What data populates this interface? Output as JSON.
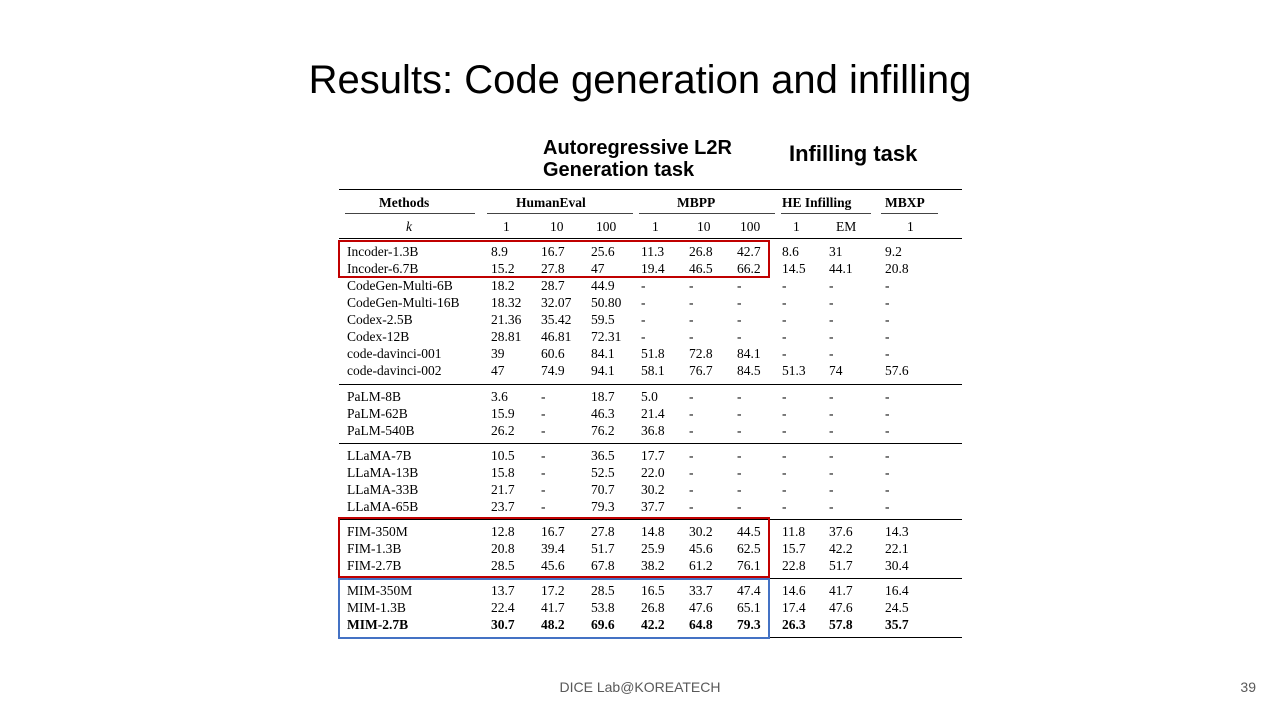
{
  "slide": {
    "title": "Results: Code generation and infilling",
    "annotation_autoregressive": [
      "Autoregressive L2R",
      "Generation task"
    ],
    "annotation_infilling": "Infilling task",
    "footer": "DICE Lab@KOREATECH",
    "page_number": "39"
  },
  "table": {
    "group_headers": [
      "Methods",
      "HumanEval",
      "MBPP",
      "HE Infilling",
      "MBXP"
    ],
    "k_label": "k",
    "k_values": [
      "1",
      "10",
      "100",
      "1",
      "10",
      "100",
      "1",
      "EM",
      "1"
    ],
    "rows": [
      [
        "Incoder-1.3B",
        "8.9",
        "16.7",
        "25.6",
        "11.3",
        "26.8",
        "42.7",
        "8.6",
        "31",
        "9.2"
      ],
      [
        "Incoder-6.7B",
        "15.2",
        "27.8",
        "47",
        "19.4",
        "46.5",
        "66.2",
        "14.5",
        "44.1",
        "20.8"
      ],
      [
        "CodeGen-Multi-6B",
        "18.2",
        "28.7",
        "44.9",
        "-",
        "-",
        "-",
        "-",
        "-",
        "-"
      ],
      [
        "CodeGen-Multi-16B",
        "18.32",
        "32.07",
        "50.80",
        "-",
        "-",
        "-",
        "-",
        "-",
        "-"
      ],
      [
        "Codex-2.5B",
        "21.36",
        "35.42",
        "59.5",
        "-",
        "-",
        "-",
        "-",
        "-",
        "-"
      ],
      [
        "Codex-12B",
        "28.81",
        "46.81",
        "72.31",
        "-",
        "-",
        "-",
        "-",
        "-",
        "-"
      ],
      [
        "code-davinci-001",
        "39",
        "60.6",
        "84.1",
        "51.8",
        "72.8",
        "84.1",
        "-",
        "-",
        "-"
      ],
      [
        "code-davinci-002",
        "47",
        "74.9",
        "94.1",
        "58.1",
        "76.7",
        "84.5",
        "51.3",
        "74",
        "57.6"
      ],
      [
        "PaLM-8B",
        "3.6",
        "-",
        "18.7",
        "5.0",
        "-",
        "-",
        "-",
        "-",
        "-"
      ],
      [
        "PaLM-62B",
        "15.9",
        "-",
        "46.3",
        "21.4",
        "-",
        "-",
        "-",
        "-",
        "-"
      ],
      [
        "PaLM-540B",
        "26.2",
        "-",
        "76.2",
        "36.8",
        "-",
        "-",
        "-",
        "-",
        "-"
      ],
      [
        "LLaMA-7B",
        "10.5",
        "-",
        "36.5",
        "17.7",
        "-",
        "-",
        "-",
        "-",
        "-"
      ],
      [
        "LLaMA-13B",
        "15.8",
        "-",
        "52.5",
        "22.0",
        "-",
        "-",
        "-",
        "-",
        "-"
      ],
      [
        "LLaMA-33B",
        "21.7",
        "-",
        "70.7",
        "30.2",
        "-",
        "-",
        "-",
        "-",
        "-"
      ],
      [
        "LLaMA-65B",
        "23.7",
        "-",
        "79.3",
        "37.7",
        "-",
        "-",
        "-",
        "-",
        "-"
      ],
      [
        "FIM-350M",
        "12.8",
        "16.7",
        "27.8",
        "14.8",
        "30.2",
        "44.5",
        "11.8",
        "37.6",
        "14.3"
      ],
      [
        "FIM-1.3B",
        "20.8",
        "39.4",
        "51.7",
        "25.9",
        "45.6",
        "62.5",
        "15.7",
        "42.2",
        "22.1"
      ],
      [
        "FIM-2.7B",
        "28.5",
        "45.6",
        "67.8",
        "38.2",
        "61.2",
        "76.1",
        "22.8",
        "51.7",
        "30.4"
      ],
      [
        "MIM-350M",
        "13.7",
        "17.2",
        "28.5",
        "16.5",
        "33.7",
        "47.4",
        "14.6",
        "41.7",
        "16.4"
      ],
      [
        "MIM-1.3B",
        "22.4",
        "41.7",
        "53.8",
        "26.8",
        "47.6",
        "65.1",
        "17.4",
        "47.6",
        "24.5"
      ],
      [
        "MIM-2.7B",
        "30.7",
        "48.2",
        "69.6",
        "42.2",
        "64.8",
        "79.3",
        "26.3",
        "57.8",
        "35.7"
      ]
    ],
    "bold_row_index": 20,
    "highlight_colors": {
      "red": "#c00000",
      "blue": "#4472c4"
    }
  }
}
